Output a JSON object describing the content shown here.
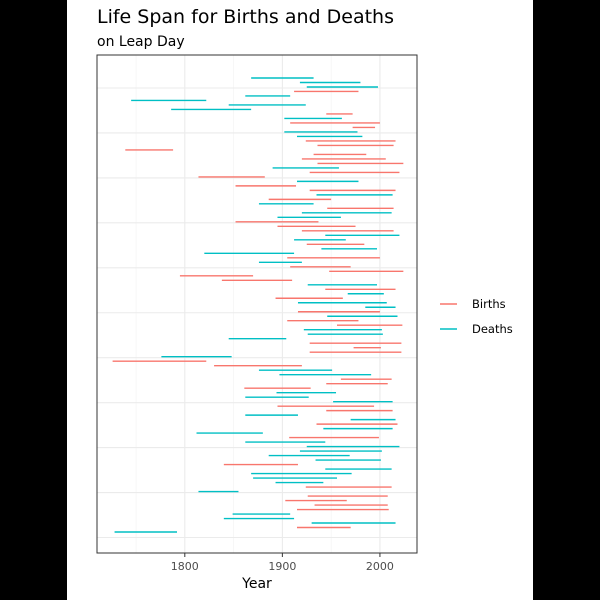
{
  "chart_data": {
    "type": "segment",
    "title": "Life Span for Births and Deaths",
    "subtitle": "on Leap Day",
    "xlabel": "Year",
    "ylabel": "",
    "xlim": [
      1710,
      2038
    ],
    "x_ticks": [
      1800,
      1900,
      2000
    ],
    "grid": true,
    "legend": {
      "position": "right",
      "entries": [
        "Births",
        "Deaths"
      ]
    },
    "colors": {
      "Births": "#F8766D",
      "Deaths": "#00BFC4"
    },
    "segments": [
      {
        "series": "Deaths",
        "start": 1868,
        "end": 1932
      },
      {
        "series": "Deaths",
        "start": 1918,
        "end": 1980
      },
      {
        "series": "Deaths",
        "start": 1925,
        "end": 1998
      },
      {
        "series": "Births",
        "start": 1912,
        "end": 1978
      },
      {
        "series": "Deaths",
        "start": 1862,
        "end": 1908
      },
      {
        "series": "Deaths",
        "start": 1745,
        "end": 1822
      },
      {
        "series": "Deaths",
        "start": 1845,
        "end": 1924
      },
      {
        "series": "Deaths",
        "start": 1786,
        "end": 1868
      },
      {
        "series": "Births",
        "start": 1945,
        "end": 1972
      },
      {
        "series": "Deaths",
        "start": 1902,
        "end": 1961
      },
      {
        "series": "Births",
        "start": 1908,
        "end": 2000
      },
      {
        "series": "Births",
        "start": 1972,
        "end": 1995
      },
      {
        "series": "Deaths",
        "start": 1902,
        "end": 1977
      },
      {
        "series": "Deaths",
        "start": 1915,
        "end": 1982
      },
      {
        "series": "Births",
        "start": 1924,
        "end": 2016
      },
      {
        "series": "Births",
        "start": 1936,
        "end": 2014
      },
      {
        "series": "Births",
        "start": 1739,
        "end": 1788
      },
      {
        "series": "Births",
        "start": 1932,
        "end": 1986
      },
      {
        "series": "Births",
        "start": 1920,
        "end": 2006
      },
      {
        "series": "Births",
        "start": 1936,
        "end": 2024
      },
      {
        "series": "Deaths",
        "start": 1890,
        "end": 1958
      },
      {
        "series": "Births",
        "start": 1928,
        "end": 2020
      },
      {
        "series": "Births",
        "start": 1814,
        "end": 1882
      },
      {
        "series": "Deaths",
        "start": 1915,
        "end": 1978
      },
      {
        "series": "Births",
        "start": 1852,
        "end": 1914
      },
      {
        "series": "Births",
        "start": 1928,
        "end": 2016
      },
      {
        "series": "Deaths",
        "start": 1935,
        "end": 2013
      },
      {
        "series": "Births",
        "start": 1886,
        "end": 1950
      },
      {
        "series": "Deaths",
        "start": 1876,
        "end": 1932
      },
      {
        "series": "Births",
        "start": 1946,
        "end": 2014
      },
      {
        "series": "Deaths",
        "start": 1920,
        "end": 2012
      },
      {
        "series": "Deaths",
        "start": 1895,
        "end": 1960
      },
      {
        "series": "Births",
        "start": 1852,
        "end": 1937
      },
      {
        "series": "Births",
        "start": 1895,
        "end": 1975
      },
      {
        "series": "Births",
        "start": 1920,
        "end": 2014
      },
      {
        "series": "Deaths",
        "start": 1944,
        "end": 2020
      },
      {
        "series": "Deaths",
        "start": 1912,
        "end": 1965
      },
      {
        "series": "Births",
        "start": 1925,
        "end": 1984
      },
      {
        "series": "Deaths",
        "start": 1940,
        "end": 1997
      },
      {
        "series": "Deaths",
        "start": 1820,
        "end": 1912
      },
      {
        "series": "Births",
        "start": 1905,
        "end": 2000
      },
      {
        "series": "Deaths",
        "start": 1876,
        "end": 1920
      },
      {
        "series": "Births",
        "start": 1908,
        "end": 1970
      },
      {
        "series": "Births",
        "start": 1948,
        "end": 2024
      },
      {
        "series": "Births",
        "start": 1795,
        "end": 1870
      },
      {
        "series": "Births",
        "start": 1838,
        "end": 1910
      },
      {
        "series": "Deaths",
        "start": 1926,
        "end": 1997
      },
      {
        "series": "Births",
        "start": 1944,
        "end": 2016
      },
      {
        "series": "Deaths",
        "start": 1967,
        "end": 2004
      },
      {
        "series": "Births",
        "start": 1893,
        "end": 1962
      },
      {
        "series": "Deaths",
        "start": 1916,
        "end": 2007
      },
      {
        "series": "Deaths",
        "start": 1985,
        "end": 2016
      },
      {
        "series": "Births",
        "start": 1916,
        "end": 2000
      },
      {
        "series": "Deaths",
        "start": 1946,
        "end": 2018
      },
      {
        "series": "Births",
        "start": 1905,
        "end": 1978
      },
      {
        "series": "Births",
        "start": 1956,
        "end": 2023
      },
      {
        "series": "Deaths",
        "start": 1922,
        "end": 2002
      },
      {
        "series": "Deaths",
        "start": 1926,
        "end": 2003
      },
      {
        "series": "Deaths",
        "start": 1845,
        "end": 1904
      },
      {
        "series": "Births",
        "start": 1928,
        "end": 2022
      },
      {
        "series": "Births",
        "start": 1973,
        "end": 2001
      },
      {
        "series": "Births",
        "start": 1928,
        "end": 2022
      },
      {
        "series": "Deaths",
        "start": 1776,
        "end": 1848
      },
      {
        "series": "Births",
        "start": 1726,
        "end": 1822
      },
      {
        "series": "Births",
        "start": 1830,
        "end": 1920
      },
      {
        "series": "Deaths",
        "start": 1876,
        "end": 1951
      },
      {
        "series": "Deaths",
        "start": 1897,
        "end": 1991
      },
      {
        "series": "Births",
        "start": 1960,
        "end": 2012
      },
      {
        "series": "Births",
        "start": 1945,
        "end": 2008
      },
      {
        "series": "Births",
        "start": 1861,
        "end": 1929
      },
      {
        "series": "Deaths",
        "start": 1894,
        "end": 1955
      },
      {
        "series": "Deaths",
        "start": 1862,
        "end": 1927
      },
      {
        "series": "Deaths",
        "start": 1952,
        "end": 2013
      },
      {
        "series": "Births",
        "start": 1895,
        "end": 1994
      },
      {
        "series": "Births",
        "start": 1945,
        "end": 2013
      },
      {
        "series": "Deaths",
        "start": 1862,
        "end": 1916
      },
      {
        "series": "Deaths",
        "start": 1970,
        "end": 2016
      },
      {
        "series": "Births",
        "start": 1935,
        "end": 2018
      },
      {
        "series": "Deaths",
        "start": 1942,
        "end": 2013
      },
      {
        "series": "Deaths",
        "start": 1812,
        "end": 1880
      },
      {
        "series": "Births",
        "start": 1907,
        "end": 1999
      },
      {
        "series": "Deaths",
        "start": 1862,
        "end": 1944
      },
      {
        "series": "Deaths",
        "start": 1925,
        "end": 2020
      },
      {
        "series": "Deaths",
        "start": 1918,
        "end": 2002
      },
      {
        "series": "Deaths",
        "start": 1886,
        "end": 1969
      },
      {
        "series": "Deaths",
        "start": 1934,
        "end": 2001
      },
      {
        "series": "Births",
        "start": 1840,
        "end": 1916
      },
      {
        "series": "Deaths",
        "start": 1944,
        "end": 2012
      },
      {
        "series": "Deaths",
        "start": 1868,
        "end": 1971
      },
      {
        "series": "Deaths",
        "start": 1870,
        "end": 1956
      },
      {
        "series": "Deaths",
        "start": 1893,
        "end": 1942
      },
      {
        "series": "Births",
        "start": 1924,
        "end": 2012
      },
      {
        "series": "Deaths",
        "start": 1814,
        "end": 1855
      },
      {
        "series": "Births",
        "start": 1926,
        "end": 2008
      },
      {
        "series": "Births",
        "start": 1903,
        "end": 1966
      },
      {
        "series": "Births",
        "start": 1933,
        "end": 2008
      },
      {
        "series": "Births",
        "start": 1915,
        "end": 2009
      },
      {
        "series": "Deaths",
        "start": 1849,
        "end": 1908
      },
      {
        "series": "Deaths",
        "start": 1840,
        "end": 1912
      },
      {
        "series": "Deaths",
        "start": 1930,
        "end": 2016
      },
      {
        "series": "Births",
        "start": 1915,
        "end": 1970
      },
      {
        "series": "Deaths",
        "start": 1728,
        "end": 1792
      }
    ]
  }
}
